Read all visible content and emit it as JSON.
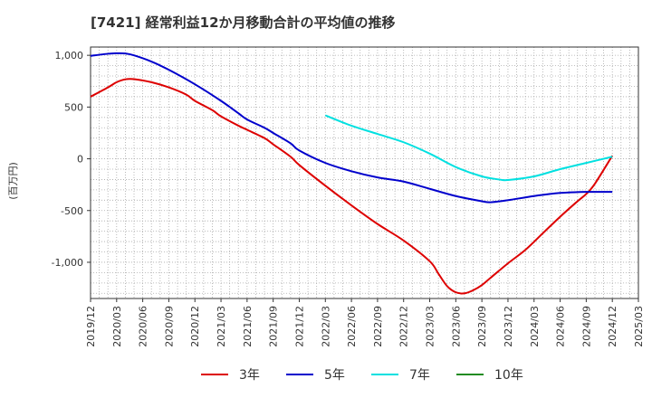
{
  "chart_data": {
    "type": "line",
    "title": "[7421]  経常利益12か月移動合計の平均値の推移",
    "ylabel": "(百万円)",
    "xlabel": "",
    "ylim": [
      -1350,
      1080
    ],
    "yticks": [
      1000,
      500,
      0,
      -500,
      -1000
    ],
    "ytick_labels": [
      "1,000",
      "500",
      "0",
      "-500",
      "-1,000"
    ],
    "xlim": [
      "2019-12",
      "2025-03"
    ],
    "xtick_labels": [
      "2019/12",
      "2020/03",
      "2020/06",
      "2020/09",
      "2020/12",
      "2021/03",
      "2021/06",
      "2021/09",
      "2021/12",
      "2022/03",
      "2022/06",
      "2022/09",
      "2022/12",
      "2023/03",
      "2023/06",
      "2023/09",
      "2023/12",
      "2024/03",
      "2024/06",
      "2024/09",
      "2024/12",
      "2025/03"
    ],
    "grid": true,
    "legend_position": "bottom",
    "series": [
      {
        "name": "3年",
        "color": "#dd0000",
        "points": [
          [
            "2019-12",
            600
          ],
          [
            "2020-02",
            690
          ],
          [
            "2020-03",
            740
          ],
          [
            "2020-04",
            768
          ],
          [
            "2020-05",
            770
          ],
          [
            "2020-07",
            740
          ],
          [
            "2020-09",
            690
          ],
          [
            "2020-11",
            620
          ],
          [
            "2020-12",
            560
          ],
          [
            "2021-02",
            470
          ],
          [
            "2021-03",
            410
          ],
          [
            "2021-05",
            320
          ],
          [
            "2021-06",
            280
          ],
          [
            "2021-08",
            200
          ],
          [
            "2021-09",
            140
          ],
          [
            "2021-11",
            20
          ],
          [
            "2021-12",
            -60
          ],
          [
            "2022-03",
            -260
          ],
          [
            "2022-06",
            -450
          ],
          [
            "2022-09",
            -630
          ],
          [
            "2022-12",
            -790
          ],
          [
            "2023-03",
            -990
          ],
          [
            "2023-04",
            -1110
          ],
          [
            "2023-05",
            -1230
          ],
          [
            "2023-06",
            -1290
          ],
          [
            "2023-07",
            -1300
          ],
          [
            "2023-08",
            -1270
          ],
          [
            "2023-09",
            -1220
          ],
          [
            "2023-10",
            -1150
          ],
          [
            "2023-12",
            -1010
          ],
          [
            "2024-02",
            -880
          ],
          [
            "2024-04",
            -720
          ],
          [
            "2024-06",
            -560
          ],
          [
            "2024-08",
            -410
          ],
          [
            "2024-09",
            -340
          ],
          [
            "2024-10",
            -240
          ],
          [
            "2024-12",
            30
          ]
        ]
      },
      {
        "name": "5年",
        "color": "#0000cc",
        "points": [
          [
            "2019-12",
            995
          ],
          [
            "2020-02",
            1015
          ],
          [
            "2020-03",
            1020
          ],
          [
            "2020-04",
            1018
          ],
          [
            "2020-05",
            1000
          ],
          [
            "2020-07",
            940
          ],
          [
            "2020-09",
            860
          ],
          [
            "2020-12",
            720
          ],
          [
            "2021-03",
            560
          ],
          [
            "2021-05",
            440
          ],
          [
            "2021-06",
            380
          ],
          [
            "2021-08",
            300
          ],
          [
            "2021-09",
            250
          ],
          [
            "2021-11",
            150
          ],
          [
            "2021-12",
            80
          ],
          [
            "2022-03",
            -40
          ],
          [
            "2022-06",
            -120
          ],
          [
            "2022-09",
            -180
          ],
          [
            "2022-12",
            -220
          ],
          [
            "2023-03",
            -290
          ],
          [
            "2023-06",
            -360
          ],
          [
            "2023-09",
            -410
          ],
          [
            "2023-10",
            -420
          ],
          [
            "2023-12",
            -400
          ],
          [
            "2024-03",
            -360
          ],
          [
            "2024-06",
            -330
          ],
          [
            "2024-09",
            -320
          ],
          [
            "2024-12",
            -320
          ]
        ]
      },
      {
        "name": "7年",
        "color": "#00e0e0",
        "points": [
          [
            "2022-03",
            420
          ],
          [
            "2022-06",
            320
          ],
          [
            "2022-09",
            240
          ],
          [
            "2022-12",
            160
          ],
          [
            "2023-03",
            50
          ],
          [
            "2023-06",
            -80
          ],
          [
            "2023-09",
            -170
          ],
          [
            "2023-11",
            -200
          ],
          [
            "2023-12",
            -205
          ],
          [
            "2024-03",
            -170
          ],
          [
            "2024-06",
            -100
          ],
          [
            "2024-09",
            -40
          ],
          [
            "2024-12",
            20
          ]
        ]
      },
      {
        "name": "10年",
        "color": "#228b22",
        "points": []
      }
    ]
  }
}
